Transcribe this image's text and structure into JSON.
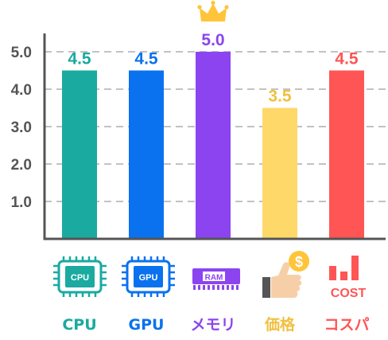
{
  "chart_data": {
    "type": "bar",
    "categories": [
      "CPU",
      "GPU",
      "メモリ",
      "価格",
      "コスパ"
    ],
    "values": [
      4.5,
      4.5,
      5.0,
      3.5,
      4.5
    ],
    "value_labels": [
      "4.5",
      "4.5",
      "5.0",
      "3.5",
      "4.5"
    ],
    "yticks": [
      "1.0",
      "2.0",
      "3.0",
      "4.0",
      "5.0"
    ],
    "ylim": [
      0,
      5.5
    ],
    "colors": [
      "#1aaaa0",
      "#0a72ee",
      "#8b44f0",
      "#ffd86a",
      "#ff5555"
    ],
    "label_colors": [
      "#1aaaa0",
      "#0a72ee",
      "#8b44f0",
      "#f0c040",
      "#ff5555"
    ],
    "grid": true,
    "title": "",
    "xlabel": "",
    "ylabel": "",
    "best_marker": "crown-icon"
  },
  "icons": {
    "cpu_text": "CPU",
    "gpu_text": "GPU",
    "ram_text": "RAM",
    "price_symbol": "$",
    "cost_text": "COST"
  }
}
